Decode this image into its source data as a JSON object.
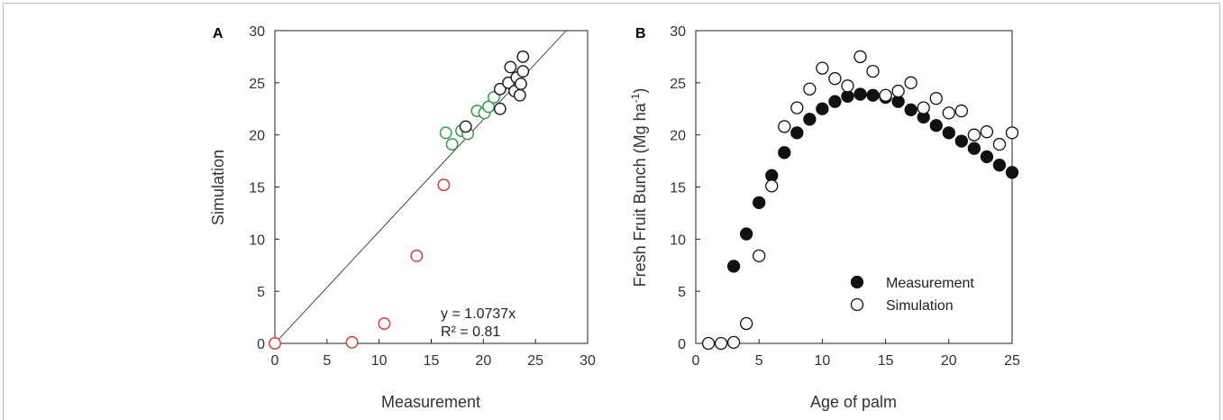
{
  "chart_data": [
    {
      "panel": "A",
      "type": "scatter",
      "xlabel": "Measurement",
      "ylabel": "Simulation",
      "xlim": [
        0,
        30
      ],
      "ylim": [
        0,
        30
      ],
      "xticks": [
        "0",
        "5",
        "10",
        "15",
        "20",
        "25",
        "30"
      ],
      "yticks": [
        "0",
        "5",
        "10",
        "15",
        "20",
        "25",
        "30"
      ],
      "grid": false,
      "annotations": [
        "y = 1.0737x",
        "R² = 0.81"
      ],
      "fit_line": {
        "slope": 1.0737,
        "color": "#333333"
      },
      "series": [
        {
          "color": "#e0393b",
          "points": [
            [
              0.0,
              0.0
            ],
            [
              7.4,
              0.1
            ],
            [
              10.5,
              1.9
            ],
            [
              13.6,
              8.4
            ],
            [
              16.2,
              15.2
            ]
          ]
        },
        {
          "color": "#2e9e48",
          "points": [
            [
              16.4,
              20.2
            ],
            [
              17.0,
              19.1
            ],
            [
              17.9,
              20.4
            ],
            [
              18.5,
              20.1
            ],
            [
              19.4,
              22.3
            ],
            [
              20.1,
              22.1
            ],
            [
              20.5,
              22.7
            ],
            [
              21.0,
              23.6
            ]
          ]
        },
        {
          "color": "#222222",
          "points": [
            [
              18.3,
              20.8
            ],
            [
              21.6,
              22.5
            ],
            [
              21.6,
              24.4
            ],
            [
              22.4,
              25.0
            ],
            [
              22.6,
              26.5
            ],
            [
              23.0,
              24.2
            ],
            [
              23.2,
              25.5
            ],
            [
              23.5,
              23.8
            ],
            [
              23.6,
              24.9
            ],
            [
              23.8,
              26.1
            ],
            [
              23.8,
              27.5
            ]
          ]
        }
      ]
    },
    {
      "panel": "B",
      "type": "scatter",
      "xlabel": "Age of palm",
      "ylabel": "Fresh Fruit Bunch (Mg ha",
      "ylabel_sup": "-1",
      "ylabel_end": ")",
      "xlim": [
        0,
        25
      ],
      "ylim": [
        0,
        30
      ],
      "xticks": [
        "0",
        "5",
        "10",
        "15",
        "20",
        "25"
      ],
      "yticks": [
        "0",
        "5",
        "10",
        "15",
        "20",
        "25",
        "30"
      ],
      "grid": false,
      "legend": "bottom-right",
      "series": [
        {
          "name": "Measurement",
          "marker": "filled",
          "color": "#111111",
          "x": [
            3,
            4,
            5,
            6,
            7,
            8,
            9,
            10,
            11,
            12,
            13,
            14,
            15,
            16,
            17,
            18,
            19,
            20,
            21,
            22,
            23,
            24,
            25
          ],
          "y": [
            7.4,
            10.5,
            13.5,
            16.1,
            18.3,
            20.2,
            21.5,
            22.5,
            23.2,
            23.7,
            23.9,
            23.8,
            23.6,
            23.2,
            22.4,
            21.7,
            20.9,
            20.2,
            19.4,
            18.7,
            17.9,
            17.1,
            16.4
          ]
        },
        {
          "name": "Simulation",
          "marker": "open",
          "color": "#111111",
          "x": [
            1,
            2,
            3,
            4,
            5,
            6,
            7,
            8,
            9,
            10,
            11,
            12,
            13,
            14,
            15,
            16,
            17,
            18,
            19,
            20,
            21,
            22,
            23,
            24,
            25
          ],
          "y": [
            0.0,
            0.0,
            0.1,
            1.9,
            8.4,
            15.1,
            20.8,
            22.6,
            24.4,
            26.4,
            25.4,
            24.7,
            27.5,
            26.1,
            23.8,
            24.2,
            25.0,
            22.6,
            23.5,
            22.1,
            22.3,
            20.0,
            20.3,
            19.1,
            20.2
          ]
        }
      ]
    }
  ]
}
